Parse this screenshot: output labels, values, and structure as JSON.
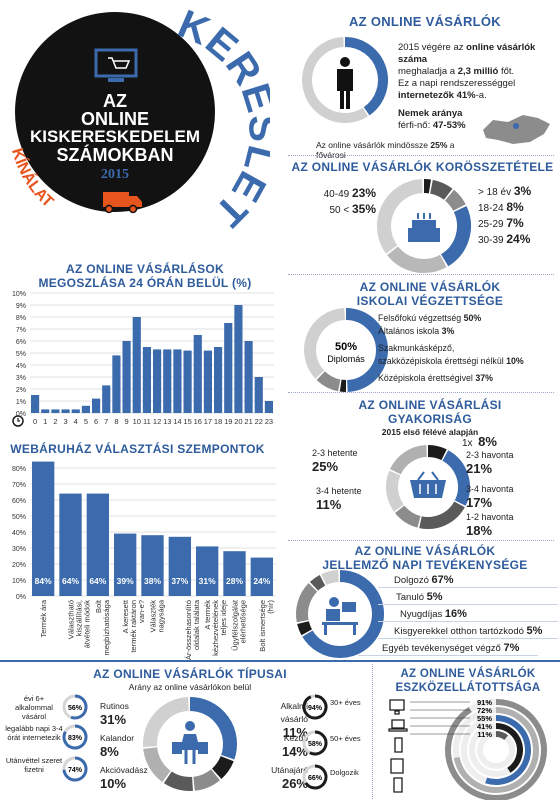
{
  "header": {
    "line1": "AZ",
    "line2": "ONLINE",
    "line3": "KISKERESKEDELEM",
    "line4": "SZÁMOKBAN",
    "year": "2015",
    "arc_top": "KERESLET",
    "arc_bottom": "KÍNÁLAT"
  },
  "online_shoppers": {
    "title": "AZ ONLINE VÁSÁRLÓK",
    "text1a": "2015 végére az",
    "text1b": "online vásárlók száma",
    "text2a": "meghaladja a",
    "text2b": "2,3 millió",
    "text2c": "főt.",
    "text3": "Ez a napi rendszerességgel",
    "text4a": "internetezők",
    "text4b": "41%",
    "text4c": "-a.",
    "gender_title": "Nemek aránya",
    "gender_text": "férfi-nő:",
    "gender_value": "47-53%",
    "budapest_a": "Az online vásárlók mindössze",
    "budapest_b": "25%",
    "budapest_c": "a fővárosi",
    "donut_value": 0.41
  },
  "age": {
    "title": "AZ ONLINE VÁSÁRLÓK KORÖSSZETÉTELE",
    "left": [
      {
        "label": "40-49",
        "value": "23%"
      },
      {
        "label": "50 <",
        "value": "35%"
      }
    ],
    "right": [
      {
        "label": "> 18 év",
        "value": "3%"
      },
      {
        "label": "18-24",
        "value": "8%"
      },
      {
        "label": "25-29",
        "value": "7%"
      },
      {
        "label": "30-39",
        "value": "24%"
      }
    ]
  },
  "hourly": {
    "title_line1": "AZ ONLINE VÁSÁRLÁSOK",
    "title_line2": "MEGOSZLÁSA 24 ÓRÁN BELÜL (%)"
  },
  "education": {
    "title_line1": "AZ ONLINE VÁSÁRLÓK",
    "title_line2": "ISKOLAI VÉGZETTSÉGE",
    "center_value": "50%",
    "center_label": "Diplomás",
    "rows": [
      {
        "label": "Felsőfokú végzettség",
        "value": "50%"
      },
      {
        "label": "Általános iskola",
        "value": "3%"
      },
      {
        "label": "Szakmunkásképző,",
        "value": ""
      },
      {
        "label": "szakközépiskola érettségi nélkül",
        "value": "10%"
      },
      {
        "label": "Középiskola érettségivel",
        "value": "37%"
      }
    ]
  },
  "frequency": {
    "title_line1": "AZ ONLINE VÁSÁRLÁSI",
    "title_line2": "GYAKORISÁG",
    "subtitle": "2015 első félévé alapján",
    "items": [
      {
        "label": "1x",
        "value": "8%"
      },
      {
        "label": "2-3 hetente",
        "value": "25%"
      },
      {
        "label": "2-3 havonta",
        "value": "21%"
      },
      {
        "label": "3-4 hetente",
        "value": "11%"
      },
      {
        "label": "3-4 havonta",
        "value": "17%"
      },
      {
        "label": "1-2 havonta",
        "value": "18%"
      }
    ]
  },
  "criteria": {
    "title": "WEBÁRUHÁZ VÁLASZTÁSI SZEMPONTOK"
  },
  "activity": {
    "title_line1": "AZ ONLINE VÁSÁRLÓK",
    "title_line2": "JELLEMZŐ NAPI TEVÉKENYSÉGE",
    "rows": [
      {
        "label": "Dolgozó",
        "value": "67%"
      },
      {
        "label": "Tanuló",
        "value": "5%"
      },
      {
        "label": "Nyugdíjas",
        "value": "16%"
      },
      {
        "label": "Kisgyerekkel otthon tartózkodó",
        "value": "5%"
      },
      {
        "label": "Egyéb tevékenységet végző",
        "value": "7%"
      }
    ]
  },
  "types": {
    "title": "AZ ONLINE VÁSÁRLÓK TÍPUSAI",
    "subtitle": "Arány az online vásárlókon belül",
    "left_items": [
      {
        "label": "évi 6+ alkalommal vásárol",
        "value": "56%"
      },
      {
        "label": "legalább napi 3-4 órát internetezik",
        "value": "83%"
      },
      {
        "label": "Utánvéttel szeret fizetni",
        "value": "74%"
      }
    ],
    "types": [
      {
        "label": "Rutinos",
        "value": "31%"
      },
      {
        "label": "Kalandor",
        "value": "8%"
      },
      {
        "label": "Akcióvadász",
        "value": "10%"
      },
      {
        "label": "Alkalmi vásárló",
        "value": "11%"
      },
      {
        "label": "Kezdő",
        "value": "14%"
      },
      {
        "label": "Utánajáró",
        "value": "26%"
      }
    ],
    "right_items": [
      {
        "label": "30+ éves",
        "value": "94%"
      },
      {
        "label": "50+ éves",
        "value": "58%"
      },
      {
        "label": "Dolgozik",
        "value": "66%"
      }
    ]
  },
  "devices": {
    "title_line1": "AZ ONLINE VÁSÁRLÓK",
    "title_line2": "ESZKÖZELLÁTOTTSÁGA",
    "values": [
      "91%",
      "72%",
      "55%",
      "41%",
      "11%"
    ]
  },
  "chart_data": [
    {
      "type": "bar",
      "title": "AZ ONLINE VÁSÁRLÁSOK MEGOSZLÁSA 24 ÓRÁN BELÜL (%)",
      "categories": [
        "0",
        "1",
        "2",
        "3",
        "4",
        "5",
        "6",
        "7",
        "8",
        "9",
        "10",
        "11",
        "12",
        "13",
        "14",
        "15",
        "16",
        "17",
        "18",
        "19",
        "20",
        "21",
        "22",
        "23"
      ],
      "values": [
        1.5,
        0.3,
        0.3,
        0.3,
        0.3,
        0.6,
        1.2,
        2.3,
        4.8,
        6.0,
        8.0,
        5.5,
        5.3,
        5.3,
        5.3,
        5.2,
        6.5,
        5.2,
        5.5,
        7.5,
        9.0,
        6.0,
        3.0,
        1.0
      ],
      "ylim": [
        0,
        10
      ],
      "yticks": [
        "0%",
        "1%",
        "2%",
        "3%",
        "4%",
        "5%",
        "6%",
        "7%",
        "8%",
        "9%",
        "10%"
      ],
      "grid": true
    },
    {
      "type": "bar",
      "title": "WEBÁRUHÁZ VÁLASZTÁSI SZEMPONTOK",
      "categories": [
        "Termék ára",
        "Választható kiszállítási, átvételi módok",
        "Bolt megbízhatósága",
        "A keresett termék raktáron van-e?",
        "Választék nagysága",
        "Ár-összehasonlító oldalak találata",
        "A termék kézhezvételének teljes ideje",
        "Ügyfélszolgálat elérhetősége",
        "Bolt ismertsége (hír)"
      ],
      "values": [
        84,
        64,
        64,
        39,
        38,
        37,
        31,
        28,
        24
      ],
      "labels": [
        "84%",
        "64%",
        "64%",
        "39%",
        "38%",
        "37%",
        "31%",
        "28%",
        "24%"
      ],
      "ylim": [
        0,
        80
      ],
      "yticks": [
        "0%",
        "10%",
        "20%",
        "30%",
        "40%",
        "50%",
        "60%",
        "70%",
        "80%"
      ],
      "grid": true
    },
    {
      "type": "pie",
      "title": "AZ ONLINE VÁSÁRLÓK KORÖSSZETÉTELE",
      "categories": [
        "> 18 év",
        "18-24",
        "25-29",
        "30-39",
        "40-49",
        "50 <"
      ],
      "values": [
        3,
        8,
        7,
        24,
        23,
        35
      ]
    },
    {
      "type": "pie",
      "title": "AZ ONLINE VÁSÁRLÓK ISKOLAI VÉGZETTSÉGE",
      "categories": [
        "Felsőfokú végzettség",
        "Általános iskola",
        "Szakmunkásképző, szakközépiskola érettségi nélkül",
        "Középiskola érettségivel"
      ],
      "values": [
        50,
        3,
        10,
        37
      ]
    },
    {
      "type": "pie",
      "title": "AZ ONLINE VÁSÁRLÁSI GYAKORISÁG",
      "categories": [
        "1x",
        "2-3 hetente",
        "2-3 havonta",
        "3-4 hetente",
        "3-4 havonta",
        "1-2 havonta"
      ],
      "values": [
        8,
        25,
        21,
        11,
        17,
        18
      ]
    },
    {
      "type": "pie",
      "title": "AZ ONLINE VÁSÁRLÓK TÍPUSAI",
      "categories": [
        "Rutinos",
        "Kalandor",
        "Akcióvadász",
        "Alkalmi vásárló",
        "Kezdő",
        "Utánajáró"
      ],
      "values": [
        31,
        8,
        10,
        11,
        14,
        26
      ]
    },
    {
      "type": "pie",
      "title": "AZ ONLINE VÁSÁRLÓK ESZKÖZELLÁTOTTSÁGA",
      "values": [
        91,
        72,
        55,
        41,
        11
      ]
    }
  ],
  "colors": {
    "blue": "#3b6aad",
    "dark": "#1c1c1c",
    "gray": "#8c8c8c",
    "light": "#d0d0d0",
    "orange": "#e8541e"
  }
}
